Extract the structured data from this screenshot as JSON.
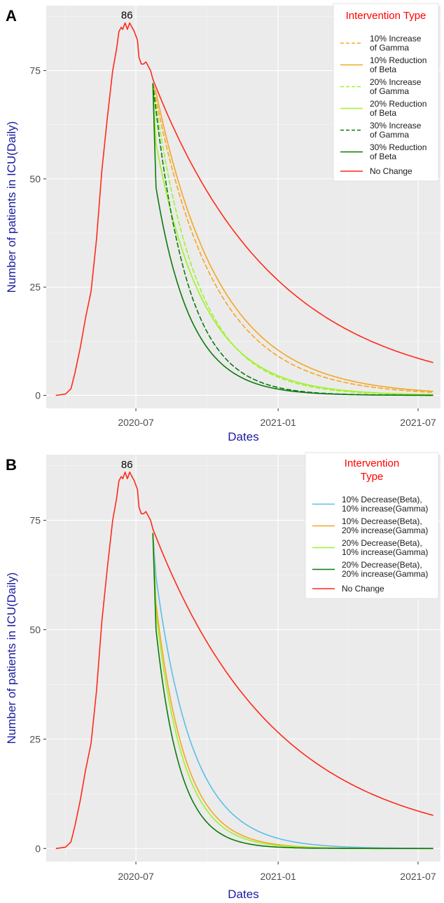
{
  "chart_data": [
    {
      "panel_label": "A",
      "type": "line",
      "xlabel": "Dates",
      "ylabel": "Number of patients in ICU(Daily)",
      "x_tick_labels": [
        "2020-07",
        "2021-01",
        "2021-07"
      ],
      "y_tick_labels": [
        "0",
        "25",
        "50",
        "75"
      ],
      "ylim": [
        -3,
        90
      ],
      "xlim": [
        "2020-03-07",
        "2021-07-30"
      ],
      "grid": true,
      "annotation": "86",
      "peak_value": 86,
      "peak_date": "2020-06-23",
      "intervention_date": "2020-07-23",
      "end_date": "2021-07-20",
      "legend": {
        "title_lines": [
          "Intervention Type"
        ],
        "placement": "top-right",
        "entries": [
          {
            "lines": [
              "10% Increase",
              "of Gamma"
            ],
            "color": "#f5a623",
            "dashed": true
          },
          {
            "lines": [
              "10% Reduction",
              "of Beta"
            ],
            "color": "#f5a623",
            "dashed": false
          },
          {
            "lines": [
              "20% Increase",
              "of Gamma"
            ],
            "color": "#9ff22a",
            "dashed": true
          },
          {
            "lines": [
              "20% Reduction",
              "of Beta"
            ],
            "color": "#9ff22a",
            "dashed": false
          },
          {
            "lines": [
              "30% Increase",
              "of Gamma"
            ],
            "color": "#0b7a0b",
            "dashed": true
          },
          {
            "lines": [
              "30% Reduction",
              "of Beta"
            ],
            "color": "#0b7a0b",
            "dashed": false
          },
          {
            "lines": [
              "No Change"
            ],
            "color": "#ff2a1a",
            "dashed": false
          }
        ]
      },
      "pre_intervention": {
        "name": "No Change",
        "color": "#ff2a1a",
        "points": [
          [
            "2020-03-20",
            0
          ],
          [
            "2020-04-01",
            0.3
          ],
          [
            "2020-04-08",
            1.5
          ],
          [
            "2020-04-13",
            5
          ],
          [
            "2020-04-20",
            11
          ],
          [
            "2020-04-27",
            18
          ],
          [
            "2020-05-04",
            24
          ],
          [
            "2020-05-11",
            36
          ],
          [
            "2020-05-18",
            52
          ],
          [
            "2020-05-25",
            64
          ],
          [
            "2020-06-01",
            75
          ],
          [
            "2020-06-06",
            80
          ],
          [
            "2020-06-09",
            84
          ],
          [
            "2020-06-12",
            85
          ],
          [
            "2020-06-14",
            84.5
          ],
          [
            "2020-06-17",
            86
          ],
          [
            "2020-06-20",
            84.5
          ],
          [
            "2020-06-23",
            86
          ],
          [
            "2020-06-26",
            85
          ],
          [
            "2020-06-29",
            84
          ],
          [
            "2020-07-01",
            83
          ],
          [
            "2020-07-03",
            82
          ],
          [
            "2020-07-05",
            78
          ],
          [
            "2020-07-08",
            76.5
          ],
          [
            "2020-07-11",
            76.5
          ],
          [
            "2020-07-14",
            77
          ],
          [
            "2020-07-17",
            76
          ],
          [
            "2020-07-20",
            75
          ],
          [
            "2020-07-23",
            73
          ]
        ]
      },
      "series": [
        {
          "name": "10% Increase of Gamma",
          "color": "#f5a623",
          "dashed": true,
          "start": 72,
          "mode": "exp",
          "decay_days": 78
        },
        {
          "name": "10% Reduction of Beta",
          "color": "#f5a623",
          "dashed": false,
          "start": 72,
          "mode": "drop_exp",
          "drop_to": 70,
          "decay_days": 83
        },
        {
          "name": "20% Increase of Gamma",
          "color": "#9ff22a",
          "dashed": true,
          "start": 72,
          "mode": "exp",
          "decay_days": 57
        },
        {
          "name": "20% Reduction of Beta",
          "color": "#9ff22a",
          "dashed": false,
          "start": 72,
          "mode": "drop_exp",
          "drop_to": 58,
          "decay_days": 62
        },
        {
          "name": "30% Increase of Gamma",
          "color": "#0b7a0b",
          "dashed": true,
          "start": 72,
          "mode": "exp",
          "decay_days": 44
        },
        {
          "name": "30% Reduction of Beta",
          "color": "#0b7a0b",
          "dashed": false,
          "start": 72,
          "mode": "drop_exp",
          "drop_to": 48,
          "decay_days": 45
        },
        {
          "name": "No Change",
          "color": "#ff2a1a",
          "dashed": false,
          "start": 73,
          "mode": "exp",
          "decay_days": 160
        }
      ]
    },
    {
      "panel_label": "B",
      "type": "line",
      "xlabel": "Dates",
      "ylabel": "Number of patients in ICU(Daily)",
      "x_tick_labels": [
        "2020-07",
        "2021-01",
        "2021-07"
      ],
      "y_tick_labels": [
        "0",
        "25",
        "50",
        "75"
      ],
      "ylim": [
        -3,
        90
      ],
      "xlim": [
        "2020-03-07",
        "2021-07-30"
      ],
      "grid": true,
      "annotation": "86",
      "peak_value": 86,
      "peak_date": "2020-06-23",
      "intervention_date": "2020-07-23",
      "end_date": "2021-07-20",
      "legend": {
        "title_lines": [
          "Intervention",
          "Type"
        ],
        "placement": "top-right",
        "entries": [
          {
            "lines": [
              "10% Decrease(Beta),",
              "10% increase(Gamma)"
            ],
            "color": "#5bbfe8",
            "dashed": false
          },
          {
            "lines": [
              "10% Decrease(Beta),",
              "20% increase(Gamma)"
            ],
            "color": "#f5a623",
            "dashed": false
          },
          {
            "lines": [
              "20% Decrease(Beta),",
              "10% increase(Gamma)"
            ],
            "color": "#9ff22a",
            "dashed": false
          },
          {
            "lines": [
              "20% Decrease(Beta),",
              "20% increase(Gamma)"
            ],
            "color": "#0b7a0b",
            "dashed": false
          },
          {
            "lines": [
              "No Change"
            ],
            "color": "#ff2a1a",
            "dashed": false
          }
        ]
      },
      "pre_intervention": {
        "name": "No Change",
        "color": "#ff2a1a",
        "points": [
          [
            "2020-03-20",
            0
          ],
          [
            "2020-04-01",
            0.3
          ],
          [
            "2020-04-08",
            1.5
          ],
          [
            "2020-04-13",
            5
          ],
          [
            "2020-04-20",
            11
          ],
          [
            "2020-04-27",
            18
          ],
          [
            "2020-05-04",
            24
          ],
          [
            "2020-05-11",
            36
          ],
          [
            "2020-05-18",
            52
          ],
          [
            "2020-05-25",
            64
          ],
          [
            "2020-06-01",
            75
          ],
          [
            "2020-06-06",
            80
          ],
          [
            "2020-06-09",
            84
          ],
          [
            "2020-06-12",
            85
          ],
          [
            "2020-06-14",
            84.5
          ],
          [
            "2020-06-17",
            86
          ],
          [
            "2020-06-20",
            84.5
          ],
          [
            "2020-06-23",
            86
          ],
          [
            "2020-06-26",
            85
          ],
          [
            "2020-06-29",
            84
          ],
          [
            "2020-07-01",
            83
          ],
          [
            "2020-07-03",
            82
          ],
          [
            "2020-07-05",
            78
          ],
          [
            "2020-07-08",
            76.5
          ],
          [
            "2020-07-11",
            76.5
          ],
          [
            "2020-07-14",
            77
          ],
          [
            "2020-07-17",
            76
          ],
          [
            "2020-07-20",
            75
          ],
          [
            "2020-07-23",
            73
          ]
        ]
      },
      "series": [
        {
          "name": "10% Decrease(Beta), 10% increase(Gamma)",
          "color": "#5bbfe8",
          "dashed": false,
          "start": 72,
          "mode": "drop_exp",
          "drop_to": 62,
          "decay_days": 48
        },
        {
          "name": "10% Decrease(Beta), 20% increase(Gamma)",
          "color": "#f5a623",
          "dashed": false,
          "start": 72,
          "mode": "drop_exp",
          "drop_to": 56,
          "decay_days": 38
        },
        {
          "name": "20% Decrease(Beta), 10% increase(Gamma)",
          "color": "#9ff22a",
          "dashed": false,
          "start": 72,
          "mode": "drop_exp",
          "drop_to": 54,
          "decay_days": 36
        },
        {
          "name": "20% Decrease(Beta), 20% increase(Gamma)",
          "color": "#0b7a0b",
          "dashed": false,
          "start": 72,
          "mode": "drop_exp",
          "drop_to": 50,
          "decay_days": 31
        },
        {
          "name": "No Change",
          "color": "#ff2a1a",
          "dashed": false,
          "start": 73,
          "mode": "exp",
          "decay_days": 160
        }
      ]
    }
  ]
}
